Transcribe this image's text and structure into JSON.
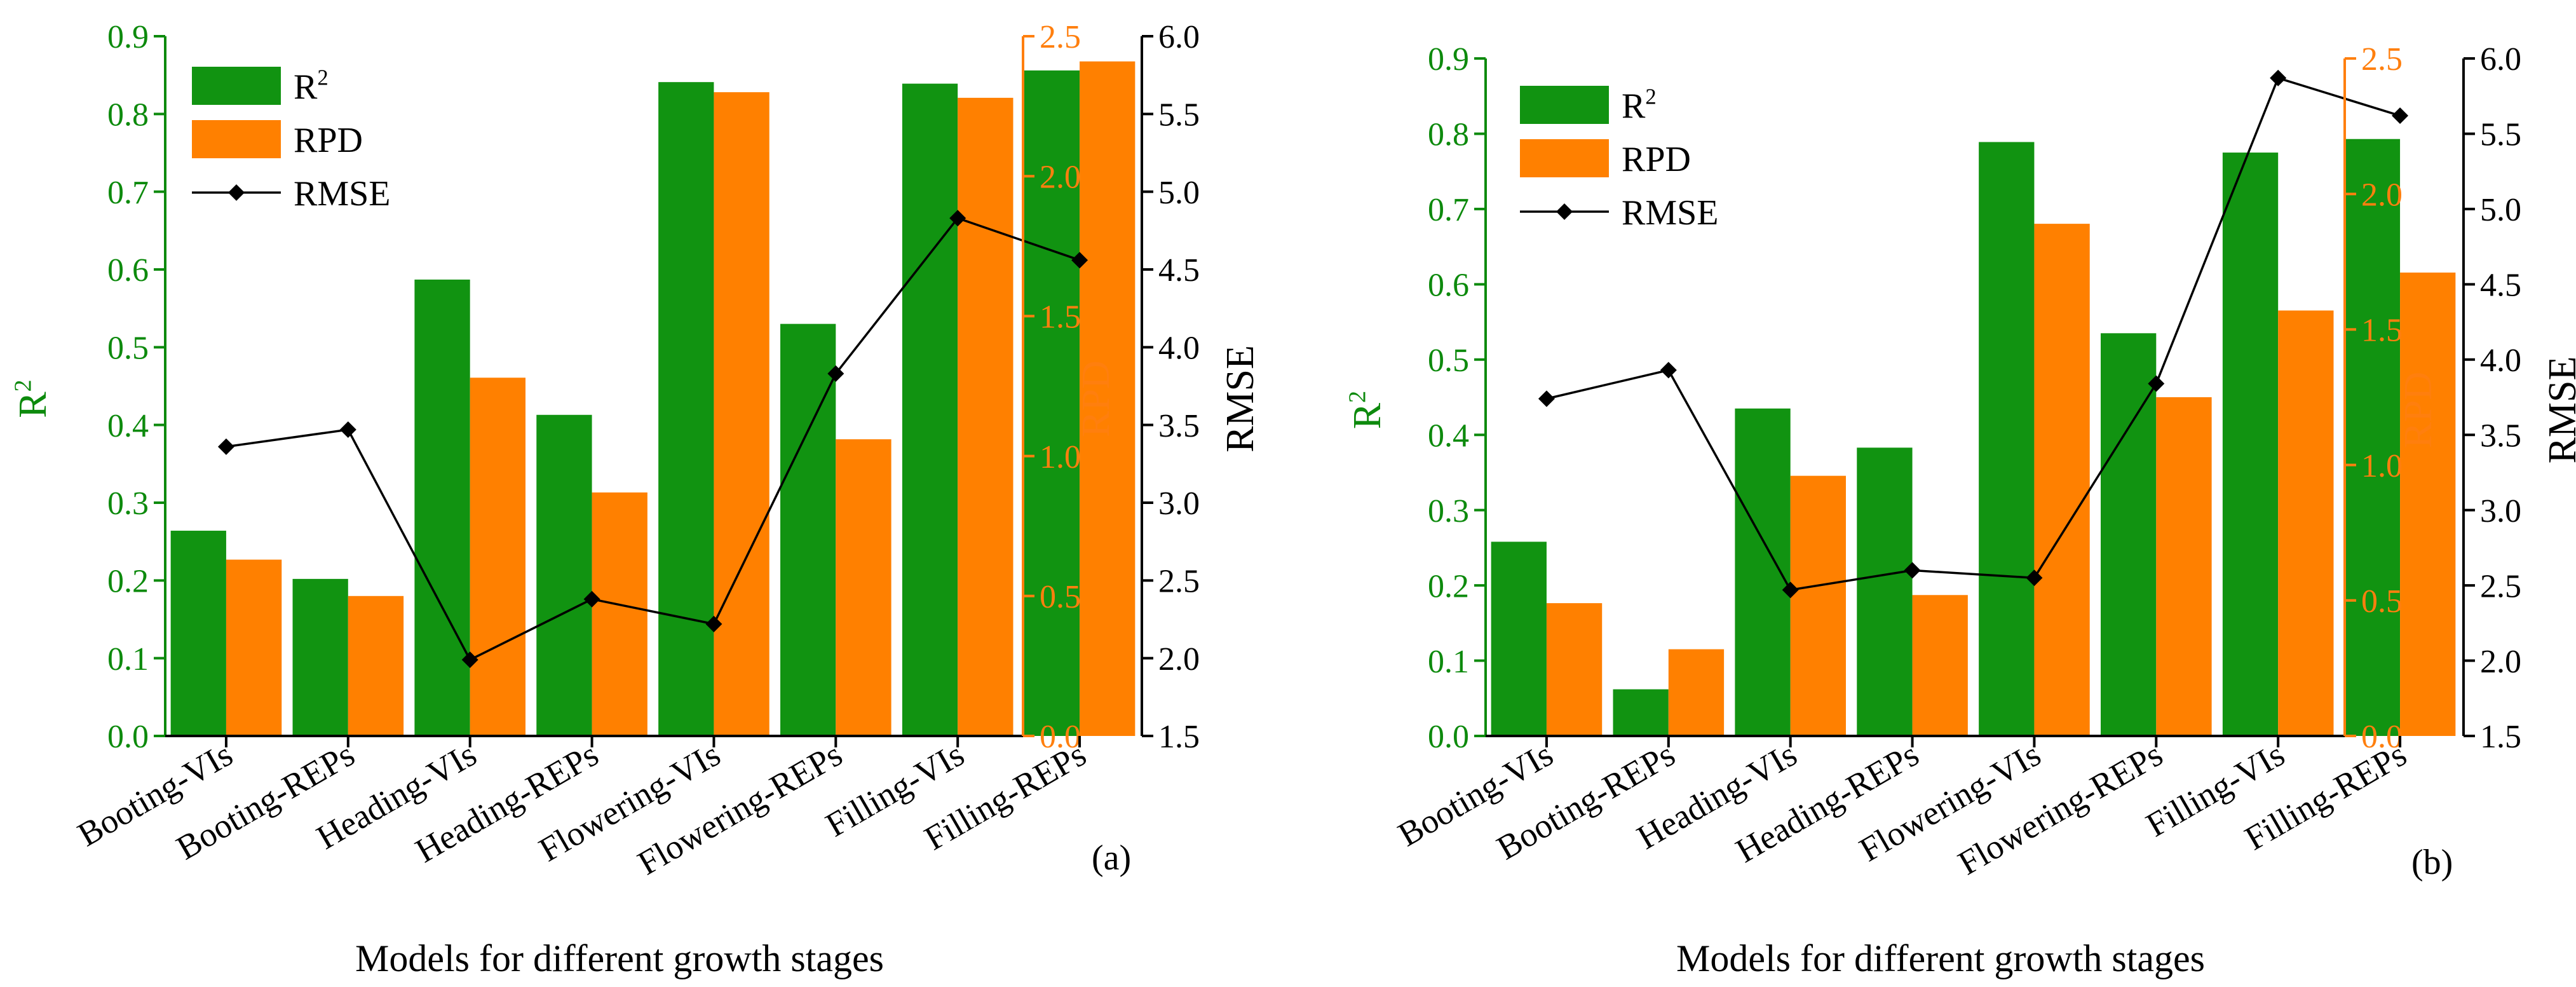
{
  "figure": {
    "panels": [
      "(a)",
      "(b)"
    ],
    "legend": {
      "r2": "R2",
      "r2_base": "R",
      "r2_sup": "2",
      "rpd": "RPD",
      "rmse": "RMSE"
    },
    "axis_titles": {
      "left": "R2",
      "left_base": "R",
      "left_sup": "2",
      "right1": "RPD",
      "right2": "RMSE"
    },
    "xlabel": "Models for different growth stages",
    "colors": {
      "r2": "#119311",
      "rpd": "#ff8000",
      "rmse": "#000000",
      "r2_axis": "#0d8a0d",
      "rpd_axis": "#ff7f0e"
    }
  },
  "chart_data": [
    {
      "type": "bar",
      "panel": "(a)",
      "categories": [
        "Booting-VIs",
        "Booting-REPs",
        "Heading-VIs",
        "Heading-REPs",
        "Flowering-VIs",
        "Flowering-REPs",
        "Filling-VIs",
        "Filling-REPs"
      ],
      "series": [
        {
          "name": "R2",
          "axis": "left",
          "values": [
            0.264,
            0.202,
            0.587,
            0.413,
            0.841,
            0.53,
            0.839,
            0.856
          ]
        },
        {
          "name": "RPD",
          "axis": "right1",
          "values": [
            0.63,
            0.5,
            1.28,
            0.87,
            2.3,
            1.06,
            2.28,
            2.41
          ]
        },
        {
          "name": "RMSE",
          "axis": "right2",
          "type": "line",
          "values": [
            3.36,
            3.47,
            1.99,
            2.38,
            2.22,
            3.83,
            4.83,
            4.56
          ]
        }
      ],
      "left_axis": {
        "label": "R2",
        "range": [
          0,
          0.9
        ],
        "ticks": [
          "0.0",
          "0.1",
          "0.2",
          "0.3",
          "0.4",
          "0.5",
          "0.6",
          "0.7",
          "0.8",
          "0.9"
        ]
      },
      "right1_axis": {
        "label": "RPD",
        "range": [
          0,
          2.5
        ],
        "ticks": [
          "0.0",
          "0.5",
          "1.0",
          "1.5",
          "2.0",
          "2.5"
        ]
      },
      "right2_axis": {
        "label": "RMSE",
        "range": [
          1.5,
          6.0
        ],
        "ticks": [
          "1.5",
          "2.0",
          "2.5",
          "3.0",
          "3.5",
          "4.0",
          "4.5",
          "5.0",
          "5.5",
          "6.0"
        ]
      },
      "xlabel": "Models for different growth stages"
    },
    {
      "type": "bar",
      "panel": "(b)",
      "categories": [
        "Booting-VIs",
        "Booting-REPs",
        "Heading-VIs",
        "Heading-REPs",
        "Flowering-VIs",
        "Flowering-REPs",
        "Filling-VIs",
        "Filling-REPs"
      ],
      "series": [
        {
          "name": "R2",
          "axis": "left",
          "values": [
            0.258,
            0.062,
            0.435,
            0.383,
            0.789,
            0.535,
            0.775,
            0.793
          ]
        },
        {
          "name": "RPD",
          "axis": "right1",
          "values": [
            0.49,
            0.32,
            0.96,
            0.52,
            1.89,
            1.25,
            1.57,
            1.71
          ]
        },
        {
          "name": "RMSE",
          "axis": "right2",
          "type": "line",
          "values": [
            3.74,
            3.93,
            2.47,
            2.6,
            2.55,
            3.84,
            5.87,
            5.62
          ]
        }
      ],
      "left_axis": {
        "label": "R2",
        "range": [
          0,
          0.9
        ],
        "ticks": [
          "0.0",
          "0.1",
          "0.2",
          "0.3",
          "0.4",
          "0.5",
          "0.6",
          "0.7",
          "0.8",
          "0.9"
        ]
      },
      "right1_axis": {
        "label": "RPD",
        "range": [
          0,
          2.5
        ],
        "ticks": [
          "0.0",
          "0.5",
          "1.0",
          "1.5",
          "2.0",
          "2.5"
        ]
      },
      "right2_axis": {
        "label": "RMSE",
        "range": [
          1.5,
          6.0
        ],
        "ticks": [
          "1.5",
          "2.0",
          "2.5",
          "3.0",
          "3.5",
          "4.0",
          "4.5",
          "5.0",
          "5.5",
          "6.0"
        ]
      },
      "xlabel": "Models for different growth stages"
    }
  ]
}
